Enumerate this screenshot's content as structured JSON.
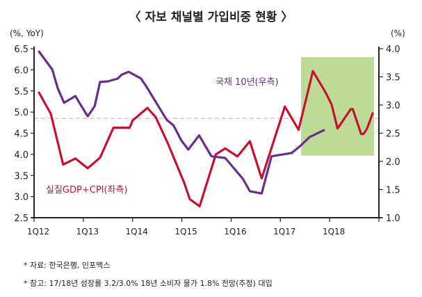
{
  "title": "〈 자보 채널별 가입비중 현황 〉",
  "notes": [
    "* 자료: 한국은행, 인포맥스",
    "* 참고: 17/18년 성장률 3.2/3.0% 18년 소비자 물가 1.8% 전망(추정) 대입"
  ],
  "chart_data": {
    "type": "line",
    "title": "〈 자보 채널별 가입비중 현황 〉",
    "left_axis": {
      "label": "(%, YoY)",
      "range": [
        2.5,
        6.5
      ],
      "ticks": [
        "6.5",
        "6.0",
        "5.5",
        "5.0",
        "4.5",
        "4.0",
        "3.5",
        "3.0",
        "2.5"
      ]
    },
    "right_axis": {
      "label": "(%)",
      "range": [
        1.0,
        4.0
      ],
      "ticks": [
        "4.0",
        "3.5",
        "3.0",
        "2.5",
        "2.0",
        "1.5",
        "1.0"
      ]
    },
    "x_axis": {
      "range": [
        2012,
        2019
      ],
      "ticks": [
        "1Q12",
        "1Q13",
        "1Q14",
        "1Q15",
        "1Q16",
        "1Q17",
        "1Q18"
      ]
    },
    "reference_line_left": 4.85,
    "highlight_region": {
      "x": [
        2017.42,
        2018.9
      ],
      "y_right": [
        2.1,
        3.85
      ],
      "color": "#bcdc96"
    },
    "series": [
      {
        "name": "실질GDP+CPI(좌측)",
        "axis": "left",
        "color": "#c8102e",
        "x": [
          2012.09,
          2012.34,
          2012.59,
          2012.84,
          2013.09,
          2013.34,
          2013.61,
          2013.94,
          2014.0,
          2014.3,
          2014.47,
          2014.72,
          2015.05,
          2015.16,
          2015.36,
          2015.69,
          2015.88,
          2016.13,
          2016.38,
          2016.62,
          2017.09,
          2017.37,
          2017.66,
          2017.91,
          2018.04,
          2018.16,
          2018.43,
          2018.47,
          2018.64,
          2018.69,
          2018.76,
          2018.88
        ],
        "y": [
          5.48,
          4.96,
          3.76,
          3.9,
          3.67,
          3.92,
          4.63,
          4.63,
          4.8,
          5.1,
          4.88,
          4.25,
          3.32,
          2.94,
          2.77,
          4.0,
          4.14,
          3.95,
          4.31,
          3.43,
          5.13,
          4.58,
          5.97,
          5.48,
          5.18,
          4.61,
          5.07,
          5.07,
          4.48,
          4.48,
          4.61,
          4.99
        ]
      },
      {
        "name": "국채 10년(우측)",
        "axis": "right",
        "color": "#6a2c91",
        "x": [
          2012.09,
          2012.37,
          2012.48,
          2012.61,
          2012.84,
          2012.92,
          2013.09,
          2013.23,
          2013.34,
          2013.5,
          2013.7,
          2013.78,
          2013.92,
          2014.17,
          2014.3,
          2014.69,
          2014.83,
          2014.99,
          2015.13,
          2015.35,
          2015.6,
          2015.88,
          2016.24,
          2016.38,
          2016.62,
          2016.82,
          2017.23,
          2017.4,
          2017.59,
          2017.9
        ],
        "y": [
          3.96,
          3.63,
          3.3,
          3.04,
          3.16,
          3.04,
          2.8,
          2.98,
          3.41,
          3.42,
          3.47,
          3.54,
          3.59,
          3.47,
          3.3,
          2.74,
          2.64,
          2.37,
          2.21,
          2.46,
          2.09,
          2.06,
          1.69,
          1.47,
          1.43,
          2.09,
          2.15,
          2.27,
          2.43,
          2.56
        ]
      }
    ]
  }
}
